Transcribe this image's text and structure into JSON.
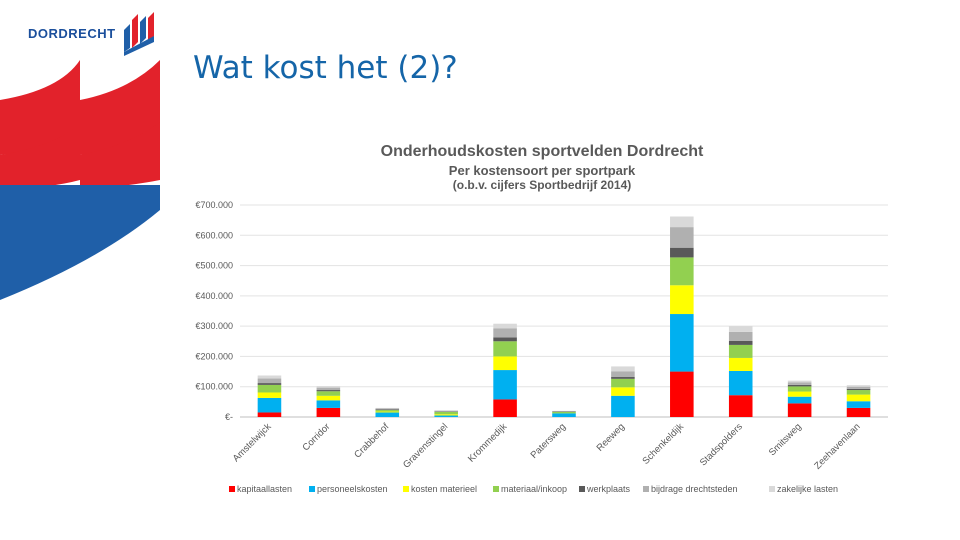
{
  "logo": {
    "text": "DORDRECHT"
  },
  "slide": {
    "title": "Wat kost het (2)?"
  },
  "colors": {
    "brand_red": "#e2222b",
    "brand_blue": "#1f5fa8",
    "title_blue": "#1565a8"
  },
  "chart_data": {
    "type": "bar",
    "stacked": true,
    "title": "Onderhoudskosten sportvelden Dordrecht",
    "subtitle": "Per kostensoort per sportpark",
    "subtitle2": "(o.b.v. cijfers Sportbedrijf 2014)",
    "xlabel": "",
    "ylabel": "",
    "ylim": [
      0,
      700000
    ],
    "yticks": [
      0,
      100000,
      200000,
      300000,
      400000,
      500000,
      600000,
      700000
    ],
    "ytick_labels": [
      "€-",
      "€100.000",
      "€200.000",
      "€300.000",
      "€400.000",
      "€500.000",
      "€600.000",
      "€700.000"
    ],
    "grid": true,
    "legend_position": "bottom",
    "categories": [
      "Amstelwijck",
      "Corridor",
      "Crabbehof",
      "Gravenstingel",
      "Krommedijk",
      "Patersweg",
      "Reeweg",
      "Schenkeldijk",
      "Stadspolders",
      "Smitsweg",
      "Zeehavenlaan"
    ],
    "series": [
      {
        "name": "kapitaallasten",
        "color": "#ff0000",
        "values": [
          15000,
          30000,
          0,
          0,
          58000,
          0,
          0,
          150000,
          72000,
          45000,
          30000
        ]
      },
      {
        "name": "personeelskosten",
        "color": "#00b0f0",
        "values": [
          48000,
          25000,
          15000,
          5000,
          97000,
          12000,
          70000,
          190000,
          80000,
          22000,
          22000
        ]
      },
      {
        "name": "kosten materieel",
        "color": "#ffff00",
        "values": [
          18000,
          15000,
          3000,
          4000,
          45000,
          0,
          28000,
          95000,
          43000,
          17000,
          22000
        ]
      },
      {
        "name": "materiaal/inkoop",
        "color": "#92d050",
        "values": [
          25000,
          15000,
          5000,
          8000,
          50000,
          5000,
          28000,
          92000,
          43000,
          17000,
          15000
        ]
      },
      {
        "name": "werkplaats",
        "color": "#595959",
        "values": [
          6000,
          4000,
          2000,
          1000,
          13000,
          1000,
          6000,
          32000,
          13000,
          5000,
          4000
        ]
      },
      {
        "name": "bijdrage drechtsteden",
        "color": "#b0b0b0",
        "values": [
          15000,
          8000,
          3000,
          3000,
          30000,
          2000,
          19000,
          68000,
          30000,
          8000,
          7000
        ]
      },
      {
        "name": "zakelijke lasten",
        "color": "#d9d9d9",
        "values": [
          10000,
          5000,
          2000,
          1000,
          15000,
          0,
          16000,
          35000,
          19000,
          6000,
          5000
        ]
      }
    ]
  }
}
